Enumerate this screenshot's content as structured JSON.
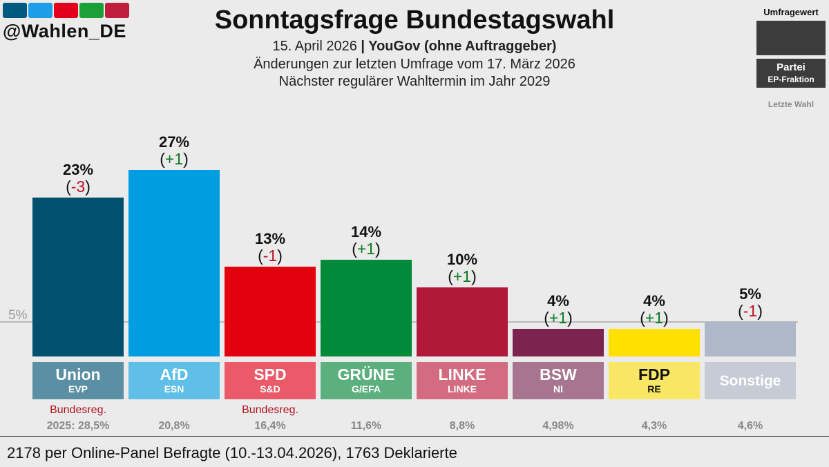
{
  "brand": {
    "handle": "@Wahlen_DE",
    "strip_colors": [
      "#005a80",
      "#1e9ee6",
      "#e2001a",
      "#1aa037",
      "#be1e3c"
    ]
  },
  "header": {
    "title": "Sonntagsfrage Bundestagswahl",
    "date": "15. April 2026",
    "separator": " | ",
    "pollster": "YouGov (ohne Auftraggeber)",
    "changes_note": "Änderungen zur letzten Umfrage vom 17. März 2026",
    "next_election": "Nächster regulärer Wahltermin im Jahr 2029"
  },
  "legend": {
    "title": "Umfragewert",
    "party": "Partei",
    "faction": "EP-Fraktion",
    "last_election": "Letzte Wahl"
  },
  "chart_data": {
    "type": "bar",
    "categories": [
      "Union",
      "AfD",
      "SPD",
      "GRÜNE",
      "LINKE",
      "BSW",
      "FDP",
      "Sonstige"
    ],
    "factions": [
      "EVP",
      "ESN",
      "S&D",
      "G/EFA",
      "LINKE",
      "NI",
      "RE",
      ""
    ],
    "values": [
      23,
      27,
      13,
      14,
      10,
      4,
      4,
      5
    ],
    "value_labels": [
      "23%",
      "27%",
      "13%",
      "14%",
      "10%",
      "4%",
      "4%",
      "5%"
    ],
    "change_labels": [
      "(-3)",
      "(+1)",
      "(-1)",
      "(+1)",
      "(+1)",
      "(+1)",
      "(+1)",
      "(-1)"
    ],
    "change_signs": [
      "neg",
      "pos",
      "neg",
      "pos",
      "pos",
      "pos",
      "pos",
      "neg"
    ],
    "bar_colors": [
      "#005070",
      "#009ee0",
      "#e3000f",
      "#008a3a",
      "#b1193b",
      "#7b2450",
      "#ffe000",
      "#aeb8c9"
    ],
    "label_colors": [
      "#5b8fa3",
      "#5fbfe8",
      "#ea5a68",
      "#5bb07e",
      "#d36c80",
      "#a87590",
      "#f8e664",
      "#c6cbd6"
    ],
    "label_text_colors": [
      "#ffffff",
      "#ffffff",
      "#ffffff",
      "#ffffff",
      "#ffffff",
      "#ffffff",
      "#111111",
      "#ffffff"
    ],
    "gov_notes": [
      "Bundesreg.",
      "",
      "Bundesreg.",
      "",
      "",
      "",
      "",
      ""
    ],
    "last_election": [
      "2025: 28,5%",
      "20,8%",
      "16,4%",
      "11,6%",
      "8,8%",
      "4,98%",
      "4,3%",
      "4,6%"
    ],
    "threshold": 5,
    "threshold_label": "5%",
    "ylim": [
      0,
      27
    ],
    "pos_color": "#0a7a1f",
    "neg_color": "#c0111f"
  },
  "footer": {
    "note": "2178 per Online-Panel Befragte (10.-13.04.2026), 1763 Deklarierte"
  }
}
